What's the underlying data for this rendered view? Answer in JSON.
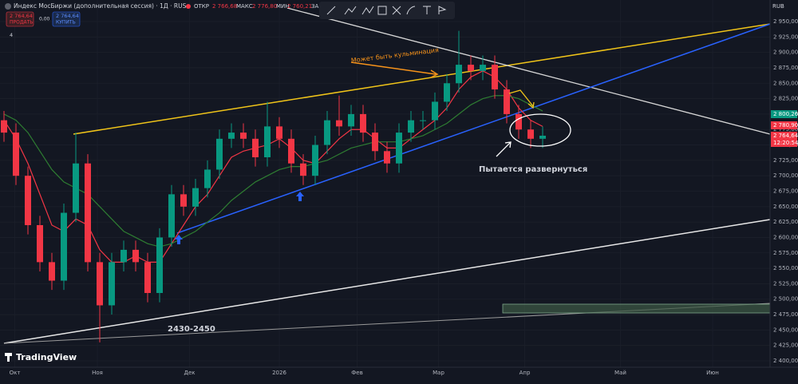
{
  "header": {
    "symbol": "Индекс МосБиржи (дополнительная сессия) · 1Д · RUS",
    "open_label": "ОТКР",
    "open": "2 766,68",
    "high_label": "МАКС",
    "high": "2 776,80",
    "low_label": "МИН",
    "low": "2 760,21",
    "change_label": "ЗА"
  },
  "trade": {
    "sell_price": "2 764,64",
    "sell": "ПРОДАТЬ",
    "spread": "0,00",
    "buy_price": "2 764,64",
    "buy": "КУПИТЬ"
  },
  "indicators_count": 4,
  "currency": "RUB",
  "brand": "TradingView",
  "price_labels": [
    {
      "text": "2 800,26",
      "color": "#089981"
    },
    {
      "text": "2 780,90",
      "color": "#f23645"
    },
    {
      "text": "2 764,64",
      "color": "#f23645"
    }
  ],
  "countdown": "12:20:54",
  "annotations": {
    "culmination": "Может быть кульминация",
    "reversal": "Пытается развернуться",
    "support": "2430-2450"
  },
  "chart_data": {
    "type": "candlestick",
    "up_color": "#089981",
    "down_color": "#f23645",
    "grid": true,
    "candles": {
      "open": [
        2790,
        2770,
        2700,
        2620,
        2560,
        2530,
        2640,
        2720,
        2560,
        2490,
        2560,
        2580,
        2560,
        2510,
        2600,
        2670,
        2650,
        2680,
        2710,
        2760,
        2770,
        2760,
        2730,
        2780,
        2760,
        2720,
        2700,
        2750,
        2790,
        2780,
        2800,
        2770,
        2740,
        2720,
        2770,
        2790,
        2790,
        2820,
        2850,
        2880,
        2870,
        2880,
        2840,
        2800,
        2775,
        2760
      ],
      "high": [
        2805,
        2785,
        2715,
        2635,
        2575,
        2655,
        2770,
        2735,
        2575,
        2575,
        2595,
        2595,
        2575,
        2615,
        2685,
        2685,
        2695,
        2725,
        2775,
        2785,
        2785,
        2775,
        2820,
        2795,
        2775,
        2735,
        2765,
        2805,
        2830,
        2815,
        2815,
        2785,
        2755,
        2785,
        2805,
        2805,
        2835,
        2865,
        2935,
        2895,
        2895,
        2895,
        2855,
        2815,
        2790,
        2780
      ],
      "low": [
        2755,
        2685,
        2605,
        2545,
        2515,
        2515,
        2625,
        2545,
        2430,
        2475,
        2545,
        2545,
        2495,
        2495,
        2585,
        2635,
        2635,
        2665,
        2695,
        2745,
        2745,
        2715,
        2715,
        2745,
        2705,
        2685,
        2685,
        2735,
        2765,
        2765,
        2755,
        2725,
        2705,
        2705,
        2755,
        2775,
        2775,
        2805,
        2835,
        2855,
        2855,
        2825,
        2785,
        2760,
        2745,
        2745
      ],
      "close": [
        2770,
        2700,
        2620,
        2560,
        2530,
        2640,
        2720,
        2560,
        2490,
        2560,
        2580,
        2560,
        2510,
        2600,
        2670,
        2650,
        2680,
        2710,
        2760,
        2770,
        2760,
        2730,
        2780,
        2760,
        2720,
        2700,
        2750,
        2790,
        2780,
        2800,
        2770,
        2740,
        2720,
        2770,
        2790,
        2790,
        2820,
        2850,
        2880,
        2870,
        2880,
        2840,
        2800,
        2775,
        2760,
        2765
      ]
    },
    "overlays": [
      {
        "color": "#f23645",
        "values": [
          2790,
          2760,
          2720,
          2670,
          2620,
          2610,
          2630,
          2620,
          2580,
          2560,
          2560,
          2570,
          2560,
          2560,
          2590,
          2620,
          2650,
          2670,
          2700,
          2730,
          2740,
          2745,
          2750,
          2760,
          2745,
          2725,
          2720,
          2740,
          2760,
          2775,
          2775,
          2760,
          2745,
          2745,
          2760,
          2775,
          2790,
          2810,
          2840,
          2860,
          2870,
          2860,
          2840,
          2810,
          2790,
          2780
        ]
      },
      {
        "color": "#2e7d32",
        "values": [
          2800,
          2790,
          2770,
          2740,
          2710,
          2690,
          2680,
          2670,
          2650,
          2630,
          2610,
          2600,
          2590,
          2585,
          2590,
          2600,
          2610,
          2625,
          2640,
          2660,
          2675,
          2690,
          2700,
          2710,
          2715,
          2715,
          2720,
          2725,
          2735,
          2745,
          2750,
          2755,
          2755,
          2755,
          2760,
          2765,
          2775,
          2785,
          2800,
          2815,
          2825,
          2830,
          2830,
          2825,
          2815,
          2805
        ]
      }
    ],
    "ylim": [
      2400,
      2950
    ],
    "yticks": [
      {
        "value": 2400,
        "label": "2 400,00"
      },
      {
        "value": 2425,
        "label": "2 425,00"
      },
      {
        "value": 2450,
        "label": "2 450,00"
      },
      {
        "value": 2475,
        "label": "2 475,00"
      },
      {
        "value": 2500,
        "label": "2 500,00"
      },
      {
        "value": 2525,
        "label": "2 525,00"
      },
      {
        "value": 2550,
        "label": "2 550,00"
      },
      {
        "value": 2575,
        "label": "2 575,00"
      },
      {
        "value": 2600,
        "label": "2 600,00"
      },
      {
        "value": 2625,
        "label": "2 625,00"
      },
      {
        "value": 2650,
        "label": "2 650,00"
      },
      {
        "value": 2675,
        "label": "2 675,00"
      },
      {
        "value": 2700,
        "label": "2 700,00"
      },
      {
        "value": 2725,
        "label": "2 725,00"
      },
      {
        "value": 2750,
        "label": "2 750,00"
      },
      {
        "value": 2775,
        "label": "2 775,00"
      },
      {
        "value": 2800,
        "label": "2 800,00"
      },
      {
        "value": 2825,
        "label": "2 825,00"
      },
      {
        "value": 2850,
        "label": "2 850,00"
      },
      {
        "value": 2875,
        "label": "2 875,00"
      },
      {
        "value": 2900,
        "label": "2 900,00"
      },
      {
        "value": 2925,
        "label": "2 925,00"
      },
      {
        "value": 2950,
        "label": "2 950,00"
      }
    ],
    "xlim": [
      0,
      64
    ],
    "xticks": [
      {
        "value": 0.9,
        "label": "Окт"
      },
      {
        "value": 7.8,
        "label": "Ноя"
      },
      {
        "value": 15.5,
        "label": "Дек"
      },
      {
        "value": 23,
        "label": "2026"
      },
      {
        "value": 29.5,
        "label": "Фев"
      },
      {
        "value": 36.3,
        "label": "Мар"
      },
      {
        "value": 43.5,
        "label": "Апр"
      },
      {
        "value": 51.5,
        "label": "Май"
      },
      {
        "value": 59.2,
        "label": "Июн"
      }
    ]
  }
}
